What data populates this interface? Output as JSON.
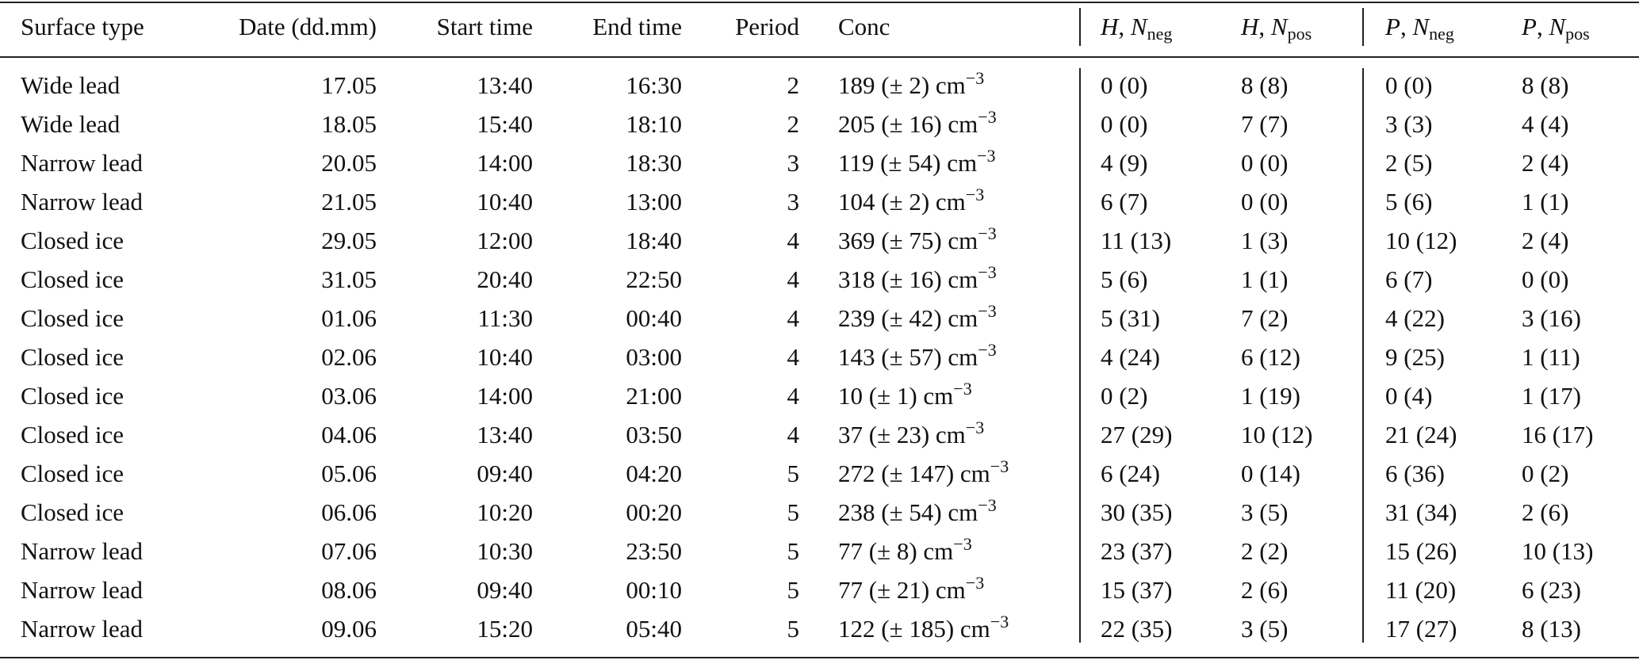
{
  "table": {
    "header": [
      "Surface type",
      "Date (dd.mm)",
      "Start time",
      "End time",
      "Period",
      "Conc",
      {
        "symbol": "H",
        "separator": ", ",
        "count": "N",
        "subscript": "neg"
      },
      {
        "symbol": "H",
        "separator": ", ",
        "count": "N",
        "subscript": "pos"
      },
      {
        "symbol": "P",
        "separator": ", ",
        "count": "N",
        "subscript": "neg"
      },
      {
        "symbol": "P",
        "separator": ", ",
        "count": "N",
        "subscript": "pos"
      }
    ],
    "rows": [
      [
        "Wide lead",
        "17.05",
        "13:40",
        "16:30",
        "2",
        {
          "text": "189 (± 2)",
          "unit": "cm",
          "exponent": "−3"
        },
        "0 (0)",
        "8 (8)",
        "0 (0)",
        "8 (8)"
      ],
      [
        "Wide lead",
        "18.05",
        "15:40",
        "18:10",
        "2",
        {
          "text": "205 (± 16)",
          "unit": "cm",
          "exponent": "−3"
        },
        "0 (0)",
        "7 (7)",
        "3 (3)",
        "4 (4)"
      ],
      [
        "Narrow lead",
        "20.05",
        "14:00",
        "18:30",
        "3",
        {
          "text": "119 (± 54)",
          "unit": "cm",
          "exponent": "−3"
        },
        "4 (9)",
        "0 (0)",
        "2 (5)",
        "2 (4)"
      ],
      [
        "Narrow lead",
        "21.05",
        "10:40",
        "13:00",
        "3",
        {
          "text": "104 (± 2)",
          "unit": "cm",
          "exponent": "−3"
        },
        "6 (7)",
        "0 (0)",
        "5 (6)",
        "1 (1)"
      ],
      [
        "Closed ice",
        "29.05",
        "12:00",
        "18:40",
        "4",
        {
          "text": "369 (± 75)",
          "unit": "cm",
          "exponent": "−3"
        },
        "11 (13)",
        "1 (3)",
        "10 (12)",
        "2 (4)"
      ],
      [
        "Closed ice",
        "31.05",
        "20:40",
        "22:50",
        "4",
        {
          "text": "318 (± 16)",
          "unit": "cm",
          "exponent": "−3"
        },
        "5 (6)",
        "1 (1)",
        "6 (7)",
        "0 (0)"
      ],
      [
        "Closed ice",
        "01.06",
        "11:30",
        "00:40",
        "4",
        {
          "text": "239 (± 42)",
          "unit": "cm",
          "exponent": "−3"
        },
        "5 (31)",
        "7 (2)",
        "4 (22)",
        "3 (16)"
      ],
      [
        "Closed ice",
        "02.06",
        "10:40",
        "03:00",
        "4",
        {
          "text": "143 (± 57)",
          "unit": "cm",
          "exponent": "−3"
        },
        "4 (24)",
        "6 (12)",
        "9 (25)",
        "1 (11)"
      ],
      [
        "Closed ice",
        "03.06",
        "14:00",
        "21:00",
        "4",
        {
          "text": "10 (± 1)",
          "unit": "cm",
          "exponent": "−3"
        },
        "0 (2)",
        "1 (19)",
        "0 (4)",
        "1 (17)"
      ],
      [
        "Closed ice",
        "04.06",
        "13:40",
        "03:50",
        "4",
        {
          "text": "37 (± 23)",
          "unit": "cm",
          "exponent": "−3"
        },
        "27 (29)",
        "10 (12)",
        "21 (24)",
        "16 (17)"
      ],
      [
        "Closed ice",
        "05.06",
        "09:40",
        "04:20",
        "5",
        {
          "text": "272 (± 147)",
          "unit": "cm",
          "exponent": "−3"
        },
        "6 (24)",
        "0 (14)",
        "6 (36)",
        "0 (2)"
      ],
      [
        "Closed ice",
        "06.06",
        "10:20",
        "00:20",
        "5",
        {
          "text": "238 (± 54)",
          "unit": "cm",
          "exponent": "−3"
        },
        "30 (35)",
        "3 (5)",
        "31 (34)",
        "2 (6)"
      ],
      [
        "Narrow lead",
        "07.06",
        "10:30",
        "23:50",
        "5",
        {
          "text": "77 (± 8)",
          "unit": "cm",
          "exponent": "−3"
        },
        "23 (37)",
        "2 (2)",
        "15 (26)",
        "10 (13)"
      ],
      [
        "Narrow lead",
        "08.06",
        "09:40",
        "00:10",
        "5",
        {
          "text": "77 (± 21)",
          "unit": "cm",
          "exponent": "−3"
        },
        "15 (37)",
        "2 (6)",
        "11 (20)",
        "6 (23)"
      ],
      [
        "Narrow lead",
        "09.06",
        "15:20",
        "05:40",
        "5",
        {
          "text": "122 (± 185)",
          "unit": "cm",
          "exponent": "−3"
        },
        "22 (35)",
        "3 (5)",
        "17 (27)",
        "8 (13)"
      ]
    ]
  }
}
